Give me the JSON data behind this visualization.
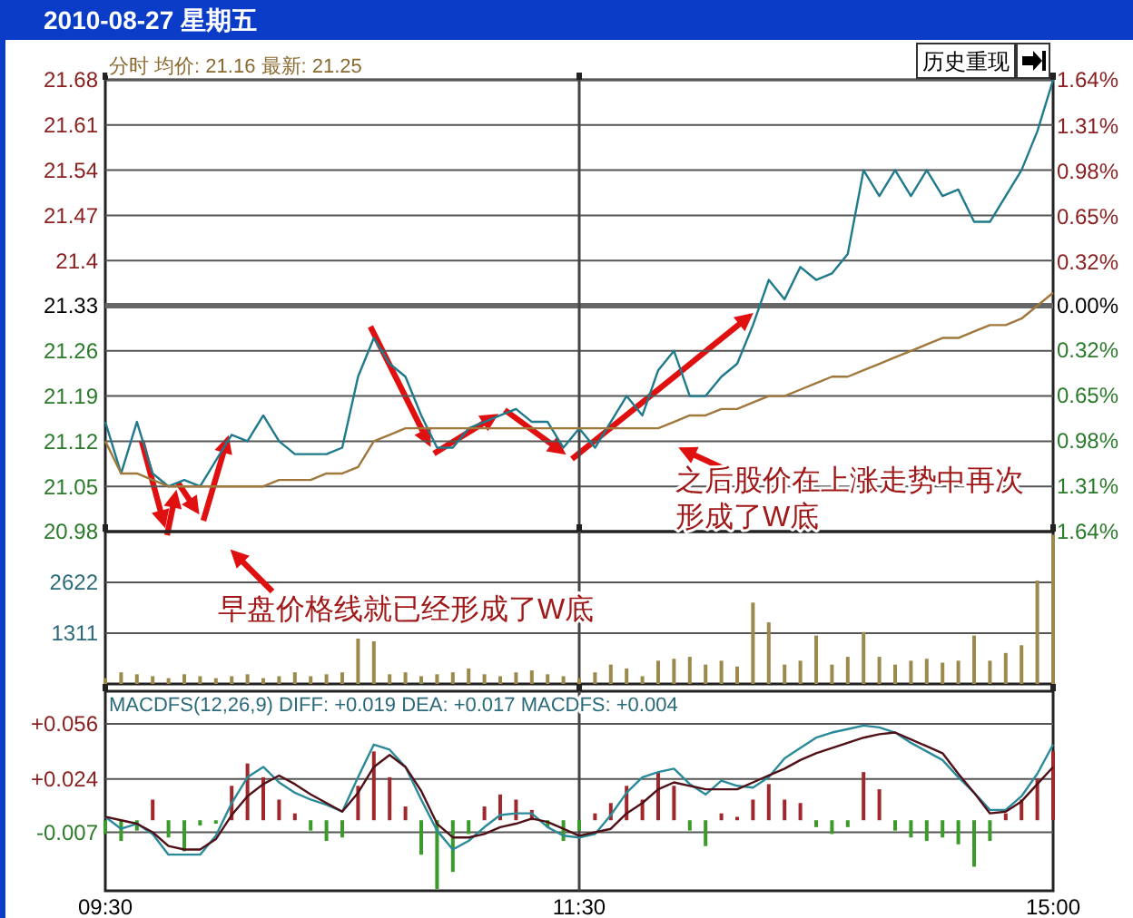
{
  "chart_data": [
    {
      "type": "line",
      "title": "2010-08-27 星期五",
      "subtitle": "分时 均价: 21.16 最新: 21.25",
      "annotations": [
        "历史重现",
        "早盘价格线就已经形成了W底",
        "之后股价在上涨走势中再次形成了W底"
      ],
      "categories": [
        "09:30",
        null,
        null,
        null,
        null,
        null,
        null,
        null,
        null,
        null,
        null,
        null,
        null,
        null,
        null,
        null,
        null,
        null,
        null,
        null,
        null,
        null,
        null,
        null,
        null,
        null,
        null,
        null,
        null,
        null,
        "11:30",
        null,
        null,
        null,
        null,
        null,
        null,
        null,
        null,
        null,
        null,
        null,
        null,
        null,
        null,
        null,
        null,
        null,
        null,
        null,
        null,
        null,
        null,
        null,
        null,
        null,
        null,
        null,
        null,
        null,
        "15:00"
      ],
      "ylim": [
        20.98,
        21.68
      ],
      "yticks": [
        20.98,
        21.05,
        21.12,
        21.19,
        21.26,
        21.33,
        21.4,
        21.47,
        21.54,
        21.61,
        21.68
      ],
      "y2lim": [
        -1.64,
        1.64
      ],
      "y2ticks": [
        {
          "value": -1.64,
          "label": "1.64%"
        },
        {
          "value": -1.31,
          "label": "1.31%"
        },
        {
          "value": -0.98,
          "label": "0.98%"
        },
        {
          "value": -0.65,
          "label": "0.65%"
        },
        {
          "value": -0.32,
          "label": "0.32%"
        },
        {
          "value": 0,
          "label": "0.00%"
        },
        {
          "value": 0.32,
          "label": "0.32%"
        },
        {
          "value": 0.65,
          "label": "0.65%"
        },
        {
          "value": 0.98,
          "label": "0.98%"
        },
        {
          "value": 1.31,
          "label": "1.31%"
        },
        {
          "value": 1.64,
          "label": "1.64%"
        }
      ],
      "grid": "y",
      "tick_labels": "y",
      "ref_lines": [
        {
          "axis": "y",
          "value": 21.33
        },
        {
          "axis": "x",
          "value": "11:30"
        }
      ],
      "series": [
        {
          "color": "#1f7a8c",
          "values": [
            21.15,
            21.07,
            21.15,
            21.07,
            21.05,
            21.06,
            21.05,
            21.09,
            21.13,
            21.12,
            21.16,
            21.12,
            21.1,
            21.1,
            21.1,
            21.11,
            21.22,
            21.28,
            21.24,
            21.22,
            21.16,
            21.11,
            21.11,
            21.14,
            21.15,
            21.16,
            21.17,
            21.15,
            21.15,
            21.11,
            21.14,
            21.11,
            21.15,
            21.19,
            21.16,
            21.23,
            21.26,
            21.19,
            21.19,
            21.22,
            21.24,
            21.3,
            21.37,
            21.34,
            21.39,
            21.37,
            21.38,
            21.41,
            21.54,
            21.5,
            21.54,
            21.5,
            21.54,
            21.5,
            21.51,
            21.46,
            21.46,
            21.5,
            21.54,
            21.6,
            21.68
          ]
        },
        {
          "color": "#a0783c",
          "values": [
            21.12,
            21.07,
            21.07,
            21.06,
            21.05,
            21.05,
            21.05,
            21.05,
            21.05,
            21.05,
            21.05,
            21.06,
            21.06,
            21.06,
            21.07,
            21.07,
            21.08,
            21.12,
            21.13,
            21.14,
            21.14,
            21.14,
            21.14,
            21.14,
            21.14,
            21.14,
            21.14,
            21.14,
            21.14,
            21.14,
            21.14,
            21.14,
            21.14,
            21.14,
            21.14,
            21.14,
            21.15,
            21.16,
            21.16,
            21.17,
            21.17,
            21.18,
            21.19,
            21.19,
            21.2,
            21.21,
            21.22,
            21.22,
            21.23,
            21.24,
            21.25,
            21.26,
            21.27,
            21.28,
            21.28,
            21.29,
            21.3,
            21.3,
            21.31,
            21.33,
            21.35
          ]
        }
      ]
    },
    {
      "type": "bar",
      "categories": [
        "09:30",
        null,
        null,
        null,
        null,
        null,
        null,
        null,
        null,
        null,
        null,
        null,
        null,
        null,
        null,
        null,
        null,
        null,
        null,
        null,
        null,
        null,
        null,
        null,
        null,
        null,
        null,
        null,
        null,
        null,
        "11:30",
        null,
        null,
        null,
        null,
        null,
        null,
        null,
        null,
        null,
        null,
        null,
        null,
        null,
        null,
        null,
        null,
        null,
        null,
        null,
        null,
        null,
        null,
        null,
        null,
        null,
        null,
        null,
        null,
        null,
        "15:00"
      ],
      "ylim": [
        0,
        3933
      ],
      "yticks": [
        1311,
        2622
      ],
      "grid": "y",
      "tick_labels": "y",
      "ref_lines": [
        {
          "axis": "x",
          "value": "11:30"
        }
      ],
      "series": [
        {
          "color": "#9c8a4c",
          "values": [
            150,
            300,
            250,
            200,
            150,
            250,
            200,
            150,
            200,
            250,
            150,
            200,
            300,
            200,
            250,
            300,
            1170,
            1100,
            250,
            300,
            200,
            250,
            300,
            400,
            250,
            200,
            300,
            350,
            250,
            200,
            150,
            300,
            500,
            400,
            200,
            600,
            650,
            700,
            500,
            600,
            450,
            2100,
            1590,
            500,
            600,
            1250,
            500,
            700,
            1340,
            700,
            500,
            600,
            650,
            550,
            600,
            1250,
            600,
            800,
            1000,
            2670,
            3850
          ]
        }
      ]
    },
    {
      "type": "bar",
      "subtitle": "MACDFS(12,26,9) DIFF: +0.019 DEA: +0.017 MACDFS: +0.004",
      "categories": [
        "09:30",
        null,
        null,
        null,
        null,
        null,
        null,
        null,
        null,
        null,
        null,
        null,
        null,
        null,
        null,
        null,
        null,
        null,
        null,
        null,
        null,
        null,
        null,
        null,
        null,
        null,
        null,
        null,
        null,
        null,
        "11:30",
        null,
        null,
        null,
        null,
        null,
        null,
        null,
        null,
        null,
        null,
        null,
        null,
        null,
        null,
        null,
        null,
        null,
        null,
        null,
        null,
        null,
        null,
        null,
        null,
        null,
        null,
        null,
        null,
        null,
        "15:00"
      ],
      "ylim": [
        -0.041,
        0.075
      ],
      "yticks": [
        {
          "value": -0.007,
          "label": "-0.007"
        },
        {
          "value": 0.024,
          "label": "+0.024"
        },
        {
          "value": 0.056,
          "label": "+0.056"
        }
      ],
      "grid": "y",
      "ref_lines": [
        {
          "axis": "x",
          "value": "11:30"
        }
      ],
      "series": [
        {
          "values": [
            -0.008,
            -0.012,
            -0.006,
            0.012,
            -0.01,
            -0.018,
            -0.003,
            -0.002,
            0.02,
            0.033,
            0.025,
            0.012,
            0.004,
            -0.006,
            -0.012,
            -0.01,
            0.02,
            0.04,
            0.025,
            0.008,
            -0.02,
            -0.04,
            -0.03,
            -0.008,
            0.008,
            0.015,
            0.012,
            0.006,
            -0.004,
            -0.012,
            -0.006,
            0.004,
            0.01,
            0.02,
            0.012,
            0.028,
            0.02,
            -0.006,
            -0.015,
            0.004,
            0.002,
            0.012,
            0.021,
            0.012,
            0.01,
            -0.004,
            -0.008,
            -0.004,
            0.028,
            0.018,
            -0.006,
            -0.01,
            -0.012,
            -0.01,
            -0.014,
            -0.027,
            -0.012,
            0.004,
            0.012,
            0.024,
            0.04
          ],
          "colors": [
            "#3a9a2a",
            "#3a9a2a",
            "#3a9a2a",
            "#a0282c",
            "#3a9a2a",
            "#3a9a2a",
            "#3a9a2a",
            "#3a9a2a",
            "#a0282c",
            "#a0282c",
            "#a0282c",
            "#a0282c",
            "#a0282c",
            "#3a9a2a",
            "#3a9a2a",
            "#3a9a2a",
            "#a0282c",
            "#a0282c",
            "#a0282c",
            "#a0282c",
            "#3a9a2a",
            "#3a9a2a",
            "#3a9a2a",
            "#3a9a2a",
            "#a0282c",
            "#a0282c",
            "#a0282c",
            "#a0282c",
            "#3a9a2a",
            "#3a9a2a",
            "#3a9a2a",
            "#a0282c",
            "#a0282c",
            "#a0282c",
            "#a0282c",
            "#a0282c",
            "#a0282c",
            "#3a9a2a",
            "#3a9a2a",
            "#a0282c",
            "#a0282c",
            "#a0282c",
            "#a0282c",
            "#a0282c",
            "#a0282c",
            "#3a9a2a",
            "#3a9a2a",
            "#3a9a2a",
            "#a0282c",
            "#a0282c",
            "#3a9a2a",
            "#3a9a2a",
            "#3a9a2a",
            "#3a9a2a",
            "#3a9a2a",
            "#3a9a2a",
            "#3a9a2a",
            "#a0282c",
            "#a0282c",
            "#a0282c",
            "#a0282c"
          ]
        },
        {
          "type": "line",
          "color": "#2a8a9a",
          "values": [
            0.002,
            -0.005,
            -0.002,
            -0.008,
            -0.02,
            -0.02,
            -0.02,
            -0.009,
            0.01,
            0.025,
            0.031,
            0.022,
            0.016,
            0.012,
            0.009,
            0.005,
            0.025,
            0.044,
            0.041,
            0.031,
            0.012,
            -0.006,
            -0.017,
            -0.012,
            -0.004,
            0.003,
            0.004,
            0.004,
            -0.004,
            -0.009,
            -0.01,
            -0.008,
            0.003,
            0.016,
            0.025,
            0.028,
            0.03,
            0.021,
            0.015,
            0.023,
            0.02,
            0.019,
            0.025,
            0.036,
            0.042,
            0.048,
            0.051,
            0.053,
            0.055,
            0.054,
            0.051,
            0.045,
            0.04,
            0.035,
            0.025,
            0.016,
            0.006,
            0.006,
            0.014,
            0.027,
            0.044
          ]
        },
        {
          "type": "line",
          "color": "#501018",
          "values": [
            0.002,
            0,
            -0.002,
            -0.007,
            -0.015,
            -0.017,
            -0.017,
            -0.011,
            0.003,
            0.014,
            0.021,
            0.026,
            0.021,
            0.015,
            0.01,
            0.005,
            0.016,
            0.031,
            0.038,
            0.031,
            0.017,
            -0.002,
            -0.01,
            -0.01,
            -0.008,
            -0.004,
            -0.002,
            0.001,
            -0.001,
            -0.005,
            -0.009,
            -0.007,
            -0.005,
            0.004,
            0.01,
            0.018,
            0.022,
            0.02,
            0.018,
            0.018,
            0.018,
            0.022,
            0.026,
            0.03,
            0.035,
            0.039,
            0.042,
            0.045,
            0.048,
            0.05,
            0.051,
            0.047,
            0.043,
            0.039,
            0.027,
            0.016,
            0.004,
            0.005,
            0.011,
            0.021,
            0.031
          ]
        }
      ]
    }
  ]
}
